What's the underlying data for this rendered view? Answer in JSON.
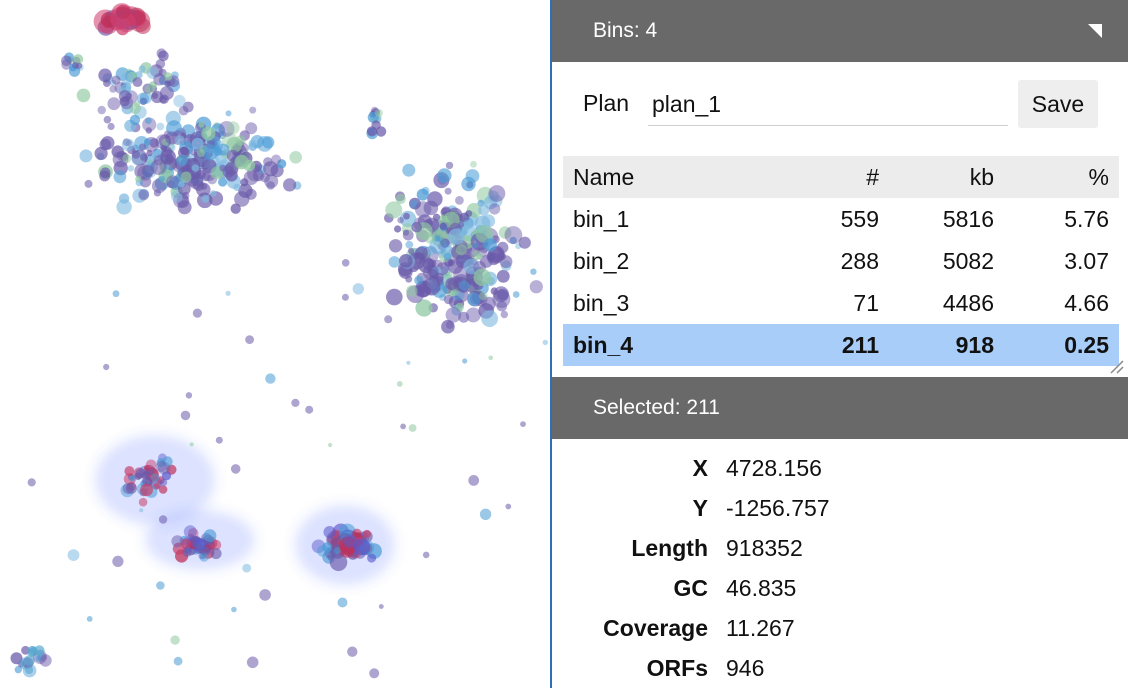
{
  "bins_panel": {
    "header": "Bins: 4",
    "plan_label": "Plan",
    "plan_value": "plan_1",
    "save_label": "Save",
    "columns": [
      "Name",
      "#",
      "kb",
      "%"
    ],
    "rows": [
      {
        "name": "bin_1",
        "count": "559",
        "kb": "5816",
        "pct": "5.76"
      },
      {
        "name": "bin_2",
        "count": "288",
        "kb": "5082",
        "pct": "3.07"
      },
      {
        "name": "bin_3",
        "count": "71",
        "kb": "4486",
        "pct": "4.66"
      },
      {
        "name": "bin_4",
        "count": "211",
        "kb": "918",
        "pct": "0.25"
      }
    ],
    "selected_row": "bin_4"
  },
  "selection_panel": {
    "header": "Selected: 211",
    "fields": [
      {
        "key": "X",
        "value": "4728.156"
      },
      {
        "key": "Y",
        "value": "-1256.757"
      },
      {
        "key": "Length",
        "value": "918352"
      },
      {
        "key": "GC",
        "value": "46.835"
      },
      {
        "key": "Coverage",
        "value": "11.267"
      },
      {
        "key": "ORFs",
        "value": "946"
      }
    ]
  },
  "colors": {
    "header_bg": "#696969",
    "selected_row_bg": "#a8cdf9",
    "point_purple": "#6a5aaa",
    "point_blue": "#4a9bd6",
    "point_red": "#c0305a",
    "highlight_glow": "#3a5cff"
  },
  "icons": {
    "collapse": "corner-triangle-icon",
    "resize": "resize-grip-icon"
  }
}
